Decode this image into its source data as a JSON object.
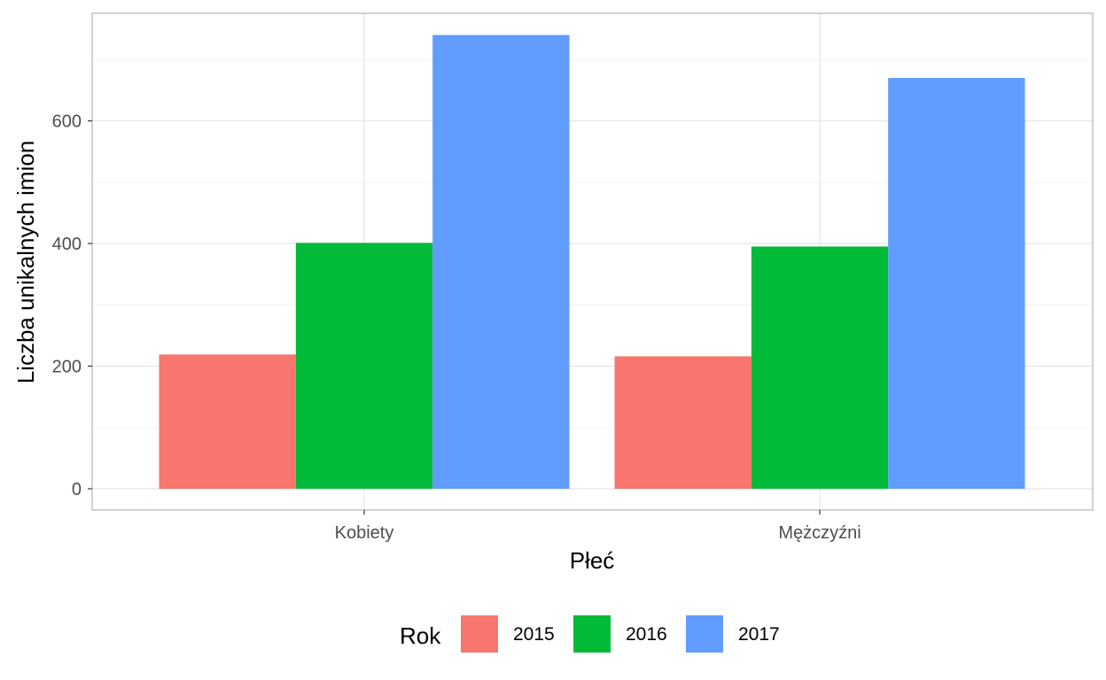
{
  "chart_data": {
    "type": "bar",
    "categories": [
      "Kobiety",
      "Mężczyźni"
    ],
    "series": [
      {
        "name": "2015",
        "values": [
          219,
          216
        ],
        "color": "#F8766D"
      },
      {
        "name": "2016",
        "values": [
          401,
          395
        ],
        "color": "#00BA38"
      },
      {
        "name": "2017",
        "values": [
          740,
          670
        ],
        "color": "#619CFF"
      }
    ],
    "xlabel": "Płeć",
    "ylabel": "Liczba unikalnych imion",
    "ylim": [
      0,
      776
    ],
    "yticks": [
      0,
      200,
      400,
      600
    ],
    "grid": true,
    "legend": {
      "title": "Rok",
      "position": "bottom",
      "entries": [
        "2015",
        "2016",
        "2017"
      ]
    },
    "colors": {
      "panel_border": "#B3B3B3",
      "grid_major": "#E5E5E5",
      "grid_minor": "#F2F2F2",
      "axis_ticks": "#333333"
    }
  }
}
